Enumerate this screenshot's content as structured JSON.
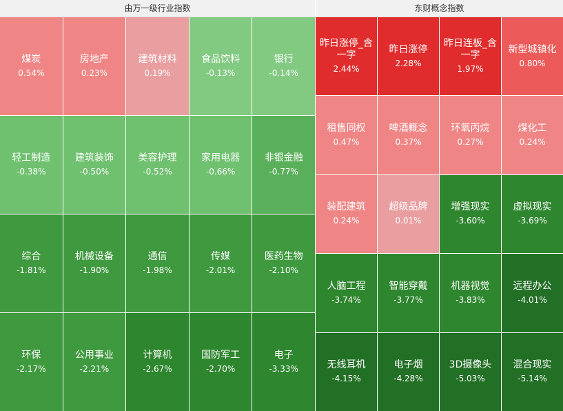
{
  "chart_data": [
    {
      "type": "treemap",
      "title": "由万一级行业指数",
      "cols": 5,
      "items": [
        {
          "name": "煤炭",
          "value": "0.54%",
          "change": 0.54
        },
        {
          "name": "房地产",
          "value": "0.23%",
          "change": 0.23
        },
        {
          "name": "建筑材料",
          "value": "0.19%",
          "change": 0.19
        },
        {
          "name": "食品饮料",
          "value": "-0.13%",
          "change": -0.13
        },
        {
          "name": "银行",
          "value": "-0.14%",
          "change": -0.14
        },
        {
          "name": "轻工制造",
          "value": "-0.38%",
          "change": -0.38
        },
        {
          "name": "建筑装饰",
          "value": "-0.50%",
          "change": -0.5
        },
        {
          "name": "美容护理",
          "value": "-0.52%",
          "change": -0.52
        },
        {
          "name": "家用电器",
          "value": "-0.66%",
          "change": -0.66
        },
        {
          "name": "非银金融",
          "value": "-0.77%",
          "change": -0.77
        },
        {
          "name": "综合",
          "value": "-1.81%",
          "change": -1.81
        },
        {
          "name": "机械设备",
          "value": "-1.90%",
          "change": -1.9
        },
        {
          "name": "通信",
          "value": "-1.98%",
          "change": -1.98
        },
        {
          "name": "传媒",
          "value": "-2.01%",
          "change": -2.01
        },
        {
          "name": "医药生物",
          "value": "-2.10%",
          "change": -2.1
        },
        {
          "name": "环保",
          "value": "-2.17%",
          "change": -2.17
        },
        {
          "name": "公用事业",
          "value": "-2.21%",
          "change": -2.21
        },
        {
          "name": "计算机",
          "value": "-2.67%",
          "change": -2.67
        },
        {
          "name": "国防军工",
          "value": "-2.70%",
          "change": -2.7
        },
        {
          "name": "电子",
          "value": "-3.33%",
          "change": -3.33
        }
      ]
    },
    {
      "type": "treemap",
      "title": "东财概念指数",
      "cols": 4,
      "items": [
        {
          "name": "昨日涨停_含一字",
          "value": "2.44%",
          "change": 2.44
        },
        {
          "name": "昨日涨停",
          "value": "2.28%",
          "change": 2.28
        },
        {
          "name": "昨日连板_含一字",
          "value": "1.97%",
          "change": 1.97
        },
        {
          "name": "新型城镇化",
          "value": "0.80%",
          "change": 0.8
        },
        {
          "name": "租售同权",
          "value": "0.47%",
          "change": 0.47
        },
        {
          "name": "啤酒概念",
          "value": "0.37%",
          "change": 0.37
        },
        {
          "name": "环氧丙烷",
          "value": "0.27%",
          "change": 0.27
        },
        {
          "name": "煤化工",
          "value": "0.24%",
          "change": 0.24
        },
        {
          "name": "装配建筑",
          "value": "0.24%",
          "change": 0.24
        },
        {
          "name": "超级品牌",
          "value": "0.01%",
          "change": 0.01
        },
        {
          "name": "增强现实",
          "value": "-3.60%",
          "change": -3.6
        },
        {
          "name": "虚拟现实",
          "value": "-3.69%",
          "change": -3.69
        },
        {
          "name": "人脑工程",
          "value": "-3.74%",
          "change": -3.74
        },
        {
          "name": "智能穿戴",
          "value": "-3.77%",
          "change": -3.77
        },
        {
          "name": "机器视觉",
          "value": "-3.83%",
          "change": -3.83
        },
        {
          "name": "远程办公",
          "value": "-4.01%",
          "change": -4.01
        },
        {
          "name": "无线耳机",
          "value": "-4.15%",
          "change": -4.15
        },
        {
          "name": "电子烟",
          "value": "-4.28%",
          "change": -4.28
        },
        {
          "name": "3D摄像头",
          "value": "-5.03%",
          "change": -5.03
        },
        {
          "name": "混合现实",
          "value": "-5.14%",
          "change": -5.14
        }
      ]
    }
  ],
  "colors": {
    "up_strong": "#e02c2c",
    "up_mid": "#ec5a5a",
    "up_light": "#f08585",
    "up_pale": "#e99ea0",
    "down_pale": "#82ca82",
    "down_light": "#6fc06f",
    "down_mid": "#5ab05a",
    "down_dark": "#3f993f",
    "down_deep": "#2e862e",
    "down_deepest": "#226f26"
  }
}
